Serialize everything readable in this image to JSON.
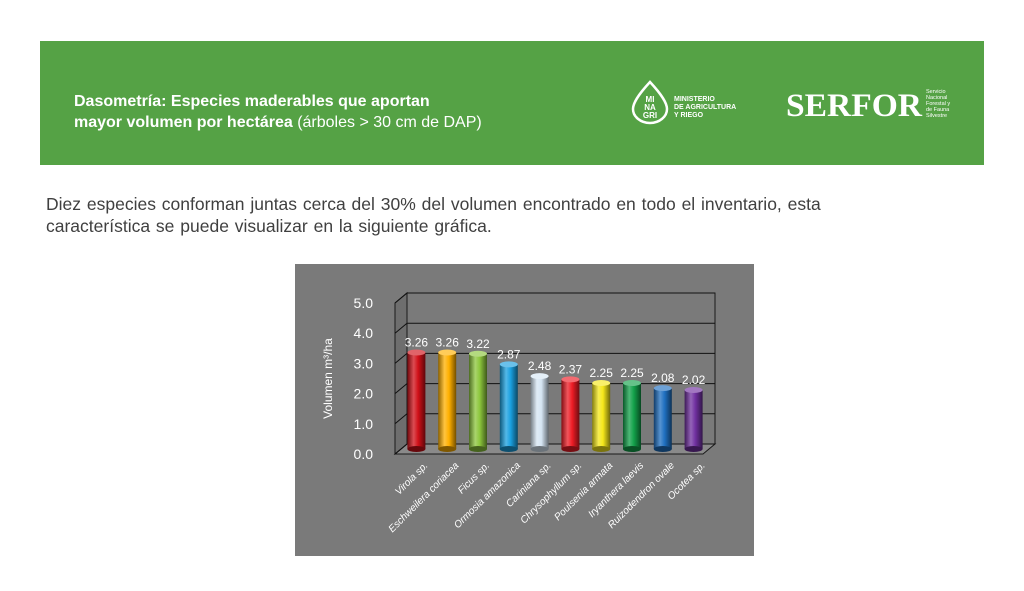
{
  "header": {
    "title_line1": "Dasometría: Especies maderables que aportan",
    "title_line2_bold": "mayor volumen por hectárea",
    "title_line2_rest": " (árboles > 30 cm de DAP)",
    "minagri_logo": {
      "mark_lines": [
        "MI",
        "NA",
        "GRI"
      ],
      "text_lines": [
        "MINISTERIO",
        "DE AGRICULTURA",
        "Y RIEGO"
      ]
    },
    "serfor_logo": {
      "wordmark": "SERFOR",
      "text_lines": [
        "Servicio",
        "Nacional",
        "Forestal y",
        "de Fauna",
        "Silvestre"
      ]
    },
    "colors": {
      "banner": "#55a245"
    }
  },
  "body": {
    "intro_line1": "Diez especies conforman juntas cerca del 30% del volumen encontrado en todo el inventario, esta",
    "intro_line2": "característica se puede visualizar en la siguiente gráfica."
  },
  "chart_data": {
    "type": "bar",
    "style": "3d-cylinder",
    "categories": [
      "Virola sp.",
      "Eschweilera coriacea",
      "Ficus sp.",
      "Ormosia amazonica",
      "Cariniana sp.",
      "Chrysophyllum sp.",
      "Poulsenia armata",
      "Iryanthera laevis",
      "Ruizodendron ovale",
      "Ocotea sp."
    ],
    "values": [
      3.26,
      3.26,
      3.22,
      2.87,
      2.48,
      2.37,
      2.25,
      2.25,
      2.08,
      2.02
    ],
    "value_labels": [
      "3.26",
      "3.26",
      "3.22",
      "2.87",
      "2.48",
      "2.37",
      "2.25",
      "2.25",
      "2.08",
      "2.02"
    ],
    "bar_colors": [
      "#d01018",
      "#ffb000",
      "#8cc63c",
      "#1aa0e0",
      "#d6e6f4",
      "#ee1c25",
      "#f5e81a",
      "#12a14a",
      "#1f6fc0",
      "#7030a0"
    ],
    "ylabel": "Volumen m³/ha",
    "ylim": [
      0,
      5
    ],
    "yticks": [
      "0.0",
      "1.0",
      "2.0",
      "3.0",
      "4.0",
      "5.0"
    ],
    "grid": true,
    "colors": {
      "panel": "#7a7a7a",
      "text": "#ffffff"
    }
  }
}
